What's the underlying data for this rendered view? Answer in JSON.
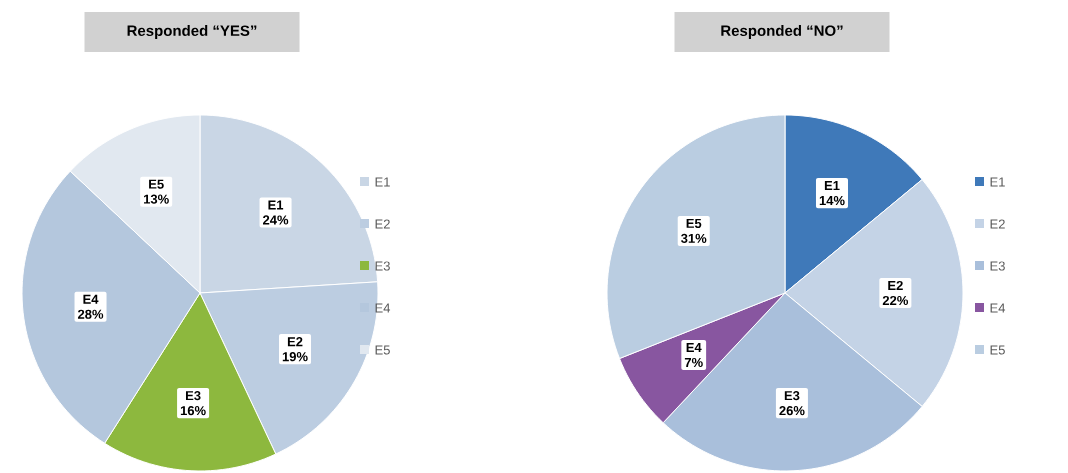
{
  "chart_data": [
    {
      "type": "pie",
      "title": "Responded “YES”",
      "categories": [
        "E1",
        "E2",
        "E3",
        "E4",
        "E5"
      ],
      "values": [
        24,
        19,
        16,
        28,
        13
      ],
      "colors": [
        "#c9d6e5",
        "#bccde1",
        "#8db83e",
        "#b4c7dd",
        "#e1e8f0"
      ],
      "value_labels": [
        "24%",
        "19%",
        "16%",
        "28%",
        "13%"
      ],
      "legend": "right"
    },
    {
      "type": "pie",
      "title": "Responded “NO”",
      "categories": [
        "E1",
        "E2",
        "E3",
        "E4",
        "E5"
      ],
      "values": [
        14,
        22,
        26,
        7,
        31
      ],
      "colors": [
        "#3f79b9",
        "#c4d3e6",
        "#a9bfdb",
        "#8856a0",
        "#bacde1"
      ],
      "value_labels": [
        "14%",
        "22%",
        "26%",
        "7%",
        "31%"
      ],
      "legend": "right"
    }
  ]
}
